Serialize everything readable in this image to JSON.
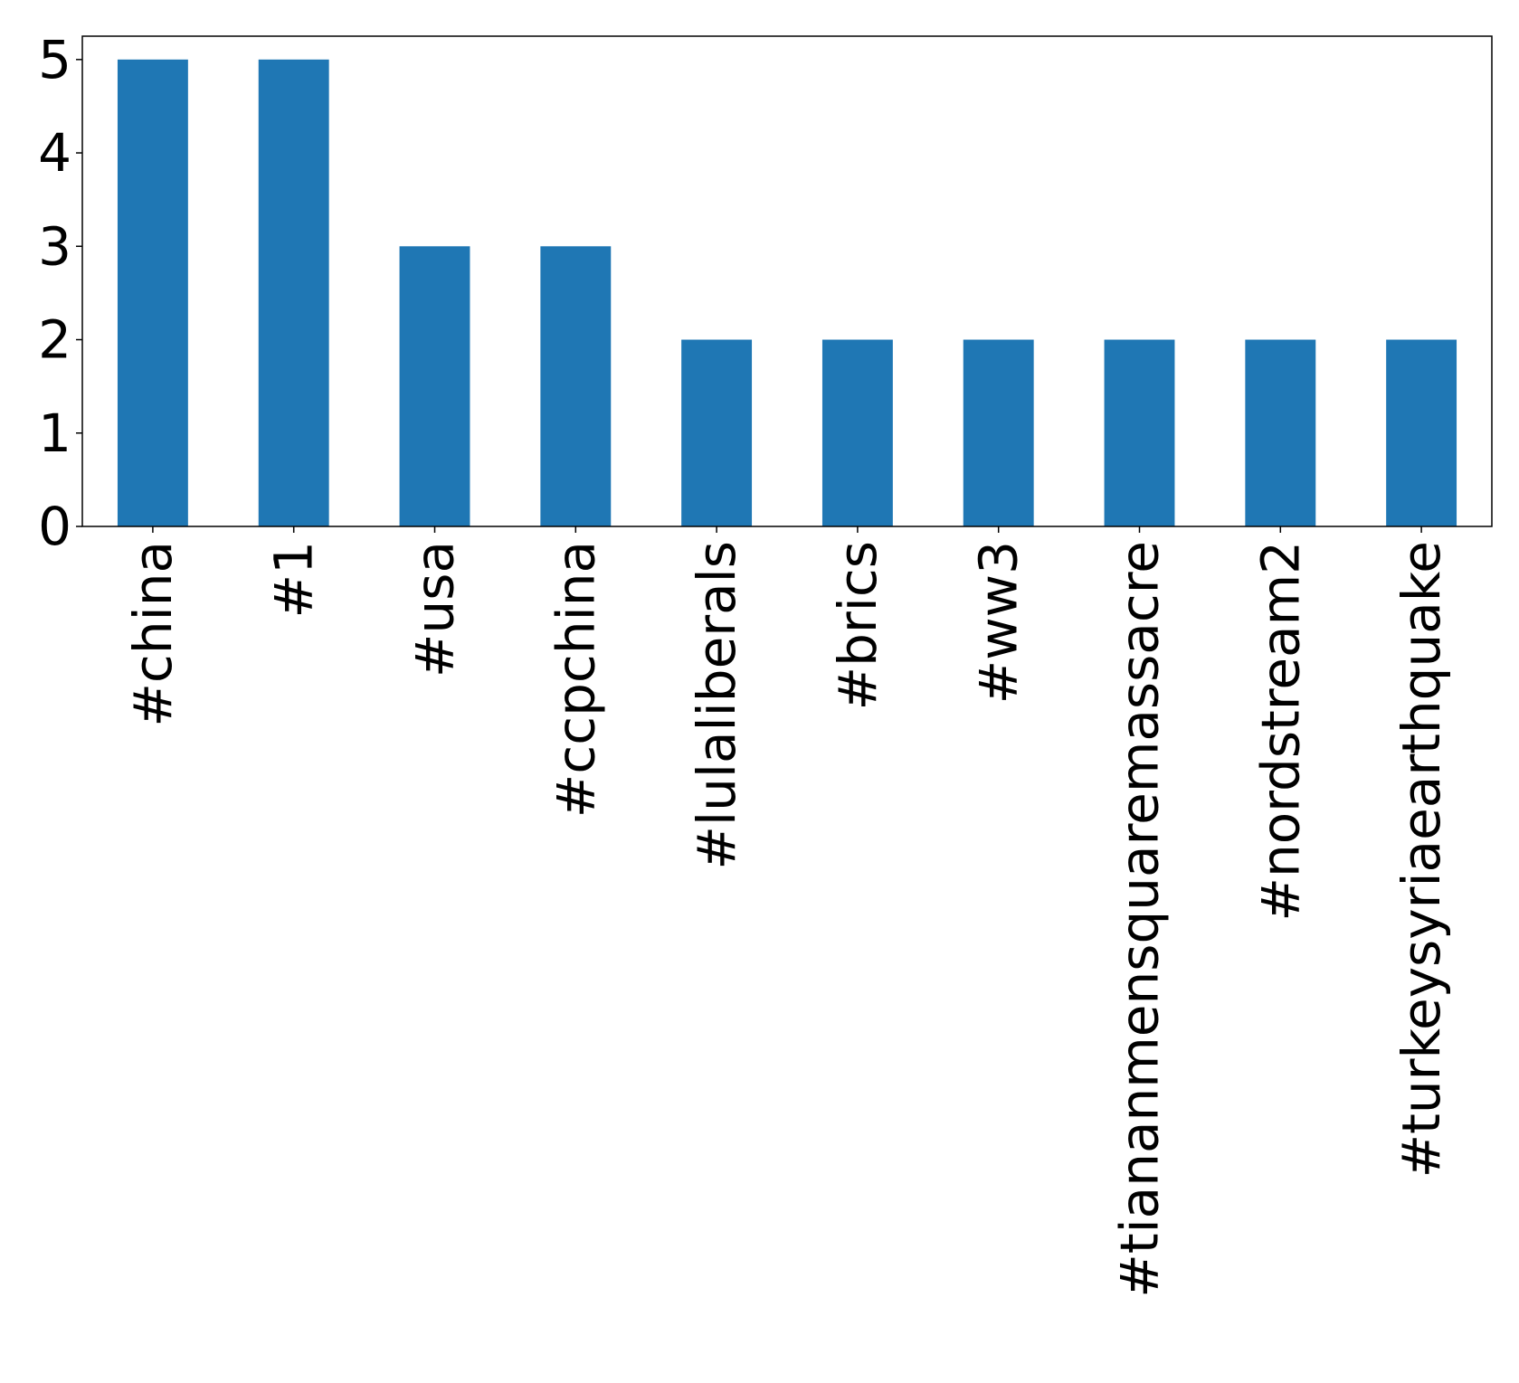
{
  "chart_data": {
    "type": "bar",
    "categories": [
      "#china",
      "#1",
      "#usa",
      "#ccpchina",
      "#lulaliberals",
      "#brics",
      "#ww3",
      "#tiananmensquaremassacre",
      "#nordstream2",
      "#turkeysyriaearthquake"
    ],
    "values": [
      5,
      5,
      3,
      3,
      2,
      2,
      2,
      2,
      2,
      2
    ],
    "yticks": [
      "0",
      "1",
      "2",
      "3",
      "4",
      "5"
    ],
    "ylim": [
      0,
      5.25
    ],
    "grid": false,
    "legend": "none",
    "bar_color": "#1f77b4",
    "title": "",
    "xlabel": "",
    "ylabel": ""
  }
}
